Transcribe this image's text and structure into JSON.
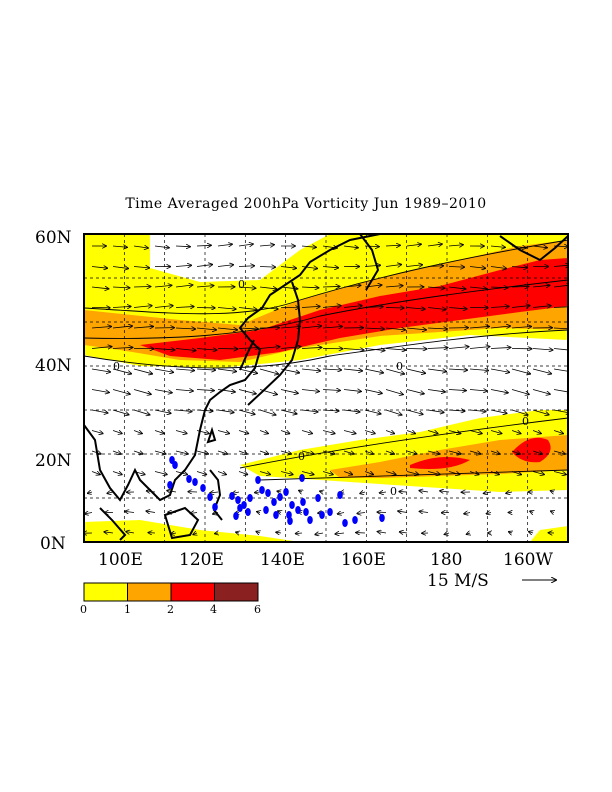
{
  "title": "Time Averaged 200hPa Vorticity  Jun 1989–2010",
  "lat_labels": [
    "60N",
    "40N",
    "20N",
    "0N"
  ],
  "lon_labels": [
    "100E",
    "120E",
    "140E",
    "160E",
    "180",
    "160W"
  ],
  "vector_reference": "15 M/S",
  "colorbar": {
    "ticks": [
      "0",
      "1",
      "2",
      "4",
      "6"
    ],
    "colors": [
      "#ffff00",
      "#ffa500",
      "#ff0000",
      "#8b2020"
    ]
  },
  "map": {
    "projection": "lat-lon",
    "lat_range": [
      0,
      62
    ],
    "lon_range": [
      90,
      210
    ],
    "field": "200hPa relative vorticity (time mean)",
    "vectors": "200hPa wind",
    "markers_color": "#0000ff"
  }
}
